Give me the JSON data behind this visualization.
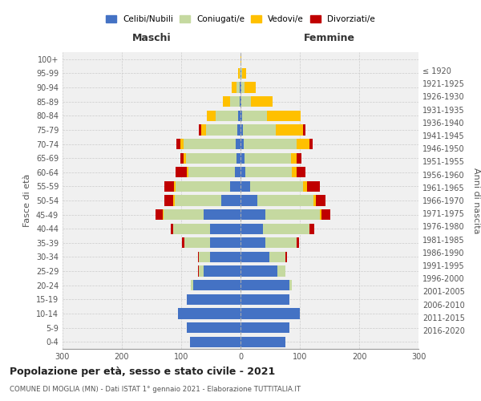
{
  "age_groups": [
    "0-4",
    "5-9",
    "10-14",
    "15-19",
    "20-24",
    "25-29",
    "30-34",
    "35-39",
    "40-44",
    "45-49",
    "50-54",
    "55-59",
    "60-64",
    "65-69",
    "70-74",
    "75-79",
    "80-84",
    "85-89",
    "90-94",
    "95-99",
    "100+"
  ],
  "birth_years": [
    "2016-2020",
    "2011-2015",
    "2006-2010",
    "2001-2005",
    "1996-2000",
    "1991-1995",
    "1986-1990",
    "1981-1985",
    "1976-1980",
    "1971-1975",
    "1966-1970",
    "1961-1965",
    "1956-1960",
    "1951-1955",
    "1946-1950",
    "1941-1945",
    "1936-1940",
    "1931-1935",
    "1926-1930",
    "1921-1925",
    "≤ 1920"
  ],
  "male": {
    "celibi": [
      85,
      90,
      105,
      90,
      80,
      62,
      52,
      52,
      52,
      62,
      33,
      18,
      10,
      7,
      8,
      6,
      4,
      2,
      1,
      0,
      0
    ],
    "coniugati": [
      0,
      0,
      0,
      0,
      4,
      8,
      18,
      42,
      62,
      68,
      78,
      92,
      78,
      85,
      88,
      52,
      38,
      16,
      6,
      2,
      0
    ],
    "vedovi": [
      0,
      0,
      0,
      0,
      0,
      0,
      0,
      0,
      0,
      1,
      2,
      2,
      3,
      4,
      6,
      8,
      15,
      12,
      8,
      2,
      0
    ],
    "divorziati": [
      0,
      0,
      0,
      0,
      0,
      2,
      2,
      4,
      4,
      12,
      16,
      16,
      18,
      6,
      6,
      4,
      0,
      0,
      0,
      0,
      0
    ]
  },
  "female": {
    "nubili": [
      75,
      82,
      100,
      82,
      82,
      62,
      48,
      42,
      38,
      42,
      28,
      16,
      8,
      7,
      6,
      4,
      3,
      2,
      1,
      1,
      0
    ],
    "coniugate": [
      0,
      0,
      0,
      0,
      4,
      14,
      28,
      52,
      78,
      92,
      95,
      90,
      78,
      78,
      88,
      56,
      42,
      16,
      6,
      2,
      0
    ],
    "vedove": [
      0,
      0,
      0,
      0,
      0,
      0,
      0,
      0,
      0,
      2,
      4,
      6,
      8,
      10,
      22,
      46,
      56,
      36,
      18,
      6,
      2
    ],
    "divorziate": [
      0,
      0,
      0,
      0,
      0,
      0,
      2,
      4,
      8,
      16,
      16,
      22,
      16,
      8,
      6,
      4,
      0,
      0,
      0,
      0,
      0
    ]
  },
  "colors": {
    "celibi": "#4472c4",
    "coniugati": "#c5d9a0",
    "vedovi": "#ffc000",
    "divorziati": "#c00000"
  },
  "title": "Popolazione per età, sesso e stato civile - 2021",
  "subtitle": "COMUNE DI MOGLIA (MN) - Dati ISTAT 1° gennaio 2021 - Elaborazione TUTTITALIA.IT",
  "xlabel_left": "Maschi",
  "xlabel_right": "Femmine",
  "ylabel_left": "Fasce di età",
  "ylabel_right": "Anni di nascita",
  "xlim": 300,
  "bg_color": "#f0f0f0",
  "legend_labels": [
    "Celibi/Nubili",
    "Coniugati/e",
    "Vedovi/e",
    "Divorziati/e"
  ]
}
